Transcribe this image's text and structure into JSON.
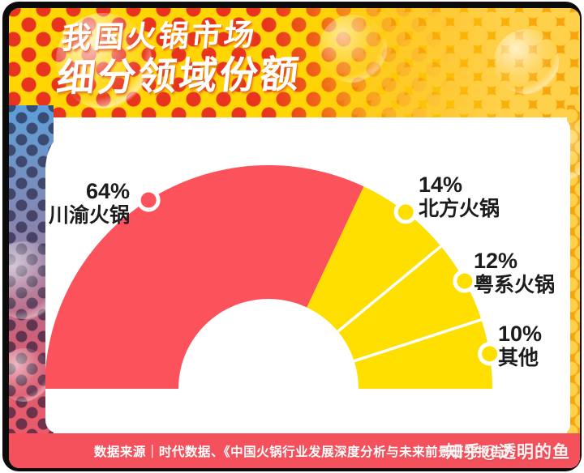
{
  "header": {
    "title_line1": "我国火锅市场",
    "title_line2": "细分领域份额"
  },
  "chart_data": {
    "type": "pie",
    "variant": "semi-donut",
    "title": "我国火锅市场细分领域份额",
    "start_angle_deg": 180,
    "end_angle_deg": 0,
    "inner_radius_ratio": 0.4,
    "legend_position": "labels-beside-slices",
    "segments": [
      {
        "label": "川渝火锅",
        "value_pct": 64,
        "display": "64%",
        "color": "#FB525B"
      },
      {
        "label": "北方火锅",
        "value_pct": 14,
        "display": "14%",
        "color": "#FFDF00"
      },
      {
        "label": "粤系火锅",
        "value_pct": 12,
        "display": "12%",
        "color": "#FFDF00"
      },
      {
        "label": "其他",
        "value_pct": 10,
        "display": "10%",
        "color": "#FFDF00"
      }
    ]
  },
  "footer": {
    "source_text": "数据来源｜时代数据、《中国火锅行业发展深度分析与未来前景研究报告》",
    "watermark": "知乎@透明的鱼"
  },
  "colors": {
    "frame_black": "#0b0b0b",
    "header_yellow": "#FFD504",
    "header_dot_red": "#E8341F",
    "orange": "#F7A50A",
    "orange_dot_yellow": "#FFD04A",
    "chart_red": "#FB525B",
    "chart_yellow": "#FFDF00",
    "footer_red": "#F4515C",
    "left_band_blue": "#5D9FD9",
    "left_band_pink": "#ED5A68",
    "marker_ring": "#FFFFFF"
  }
}
